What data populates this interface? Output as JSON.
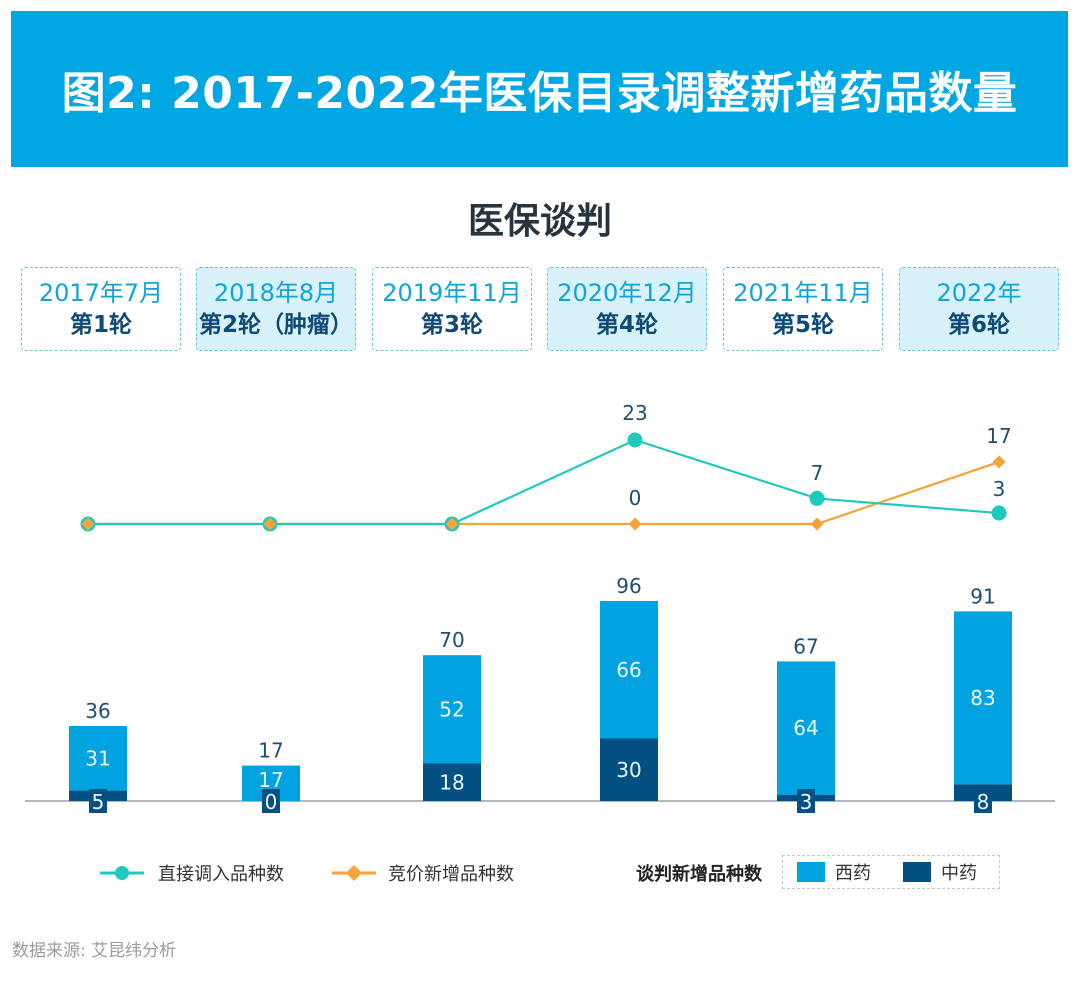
{
  "header": {
    "title": "图2: 2017-2022年医保目录调整新增药品数量"
  },
  "subtitle": "医保谈判",
  "rounds": [
    {
      "date": "2017年7月",
      "label": "第1轮",
      "highlight": false
    },
    {
      "date": "2018年8月",
      "label": "第2轮（肿瘤）",
      "highlight": true
    },
    {
      "date": "2019年11月",
      "label": "第3轮",
      "highlight": false
    },
    {
      "date": "2020年12月",
      "label": "第4轮",
      "highlight": true
    },
    {
      "date": "2021年11月",
      "label": "第5轮",
      "highlight": false
    },
    {
      "date": "2022年",
      "label": "第6轮",
      "highlight": true
    }
  ],
  "colors": {
    "header_bg": "#00a7e3",
    "direct": "#1fc9bd",
    "bidding": "#f5a33a",
    "western": "#00a3e0",
    "chinese": "#055082",
    "axis": "#9aa0a6"
  },
  "chart_data": [
    {
      "type": "line",
      "title": "医保谈判",
      "categories": [
        "第1轮",
        "第2轮",
        "第3轮",
        "第4轮",
        "第5轮",
        "第6轮"
      ],
      "series": [
        {
          "name": "直接调入品种数",
          "values": [
            0,
            0,
            0,
            23,
            7,
            3
          ],
          "labels": [
            "",
            "",
            "",
            "23",
            "7",
            "3"
          ]
        },
        {
          "name": "竞价新增品种数",
          "values": [
            0,
            0,
            0,
            0,
            0,
            17
          ],
          "labels": [
            "",
            "",
            "",
            "0",
            "",
            "17"
          ]
        }
      ]
    },
    {
      "type": "bar",
      "stacked": true,
      "title": "谈判新增品种数",
      "categories": [
        "第1轮",
        "第2轮",
        "第3轮",
        "第4轮",
        "第5轮",
        "第6轮"
      ],
      "series": [
        {
          "name": "中药",
          "values": [
            5,
            0,
            18,
            30,
            3,
            8
          ]
        },
        {
          "name": "西药",
          "values": [
            31,
            17,
            52,
            66,
            64,
            83
          ]
        }
      ],
      "totals": [
        36,
        17,
        70,
        96,
        67,
        91
      ]
    }
  ],
  "legend": {
    "direct": "直接调入品种数",
    "bidding": "竞价新增品种数",
    "bar_title": "谈判新增品种数",
    "western": "西药",
    "chinese": "中药"
  },
  "source": "数据来源: 艾昆纬分析"
}
